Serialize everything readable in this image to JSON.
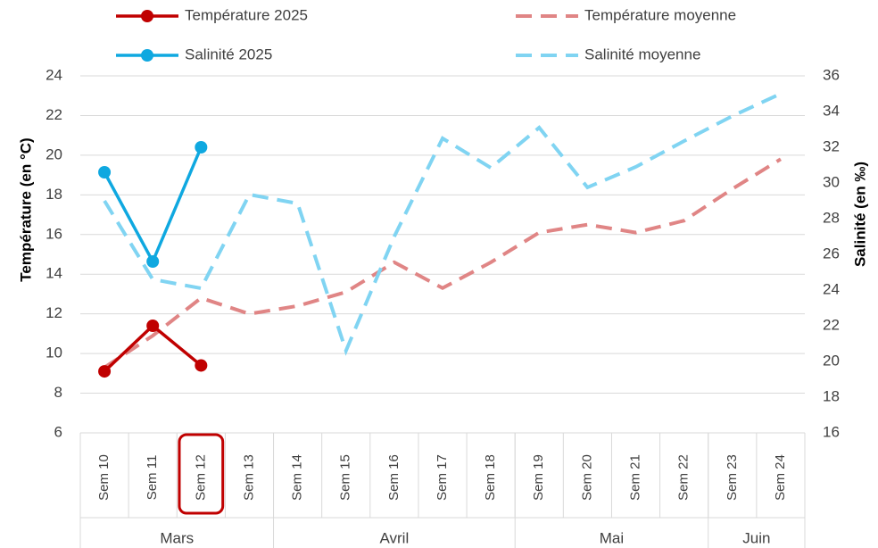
{
  "chart_data": {
    "type": "line",
    "categories": [
      "Sem 10",
      "Sem 11",
      "Sem 12",
      "Sem 13",
      "Sem 14",
      "Sem 15",
      "Sem 16",
      "Sem 17",
      "Sem 18",
      "Sem 19",
      "Sem 20",
      "Sem 21",
      "Sem 22",
      "Sem 23",
      "Sem 24"
    ],
    "groups": [
      {
        "label": "Mars",
        "span": 4
      },
      {
        "label": "Avril",
        "span": 5
      },
      {
        "label": "Mai",
        "span": 4
      },
      {
        "label": "Juin",
        "span": 2
      }
    ],
    "ylabel": "Température (en °C)",
    "y2label": "Salinité (en ‰)",
    "ylim": [
      6,
      24
    ],
    "yticks": [
      6,
      8,
      10,
      12,
      14,
      16,
      18,
      20,
      22,
      24
    ],
    "y2lim": [
      16,
      36
    ],
    "y2ticks": [
      16,
      18,
      20,
      22,
      24,
      26,
      28,
      30,
      32,
      34,
      36
    ],
    "grid": true,
    "highlight": {
      "category": 2,
      "color": "#c00000"
    },
    "series": [
      {
        "name": "Température 2025",
        "color": "#c00000",
        "dashed": false,
        "markers": true,
        "values": [
          9.1,
          11.4,
          9.4,
          null,
          null,
          null,
          null,
          null,
          null,
          null,
          null,
          null,
          null,
          null,
          null
        ]
      },
      {
        "name": "Salinité 2025",
        "color": "#0fa8e0",
        "dashed": false,
        "markers": true,
        "axis": "y2",
        "values": [
          30.6,
          25.6,
          32.0,
          null,
          null,
          null,
          null,
          null,
          null,
          null,
          null,
          null,
          null,
          null,
          null
        ]
      },
      {
        "name": "Température moyenne",
        "color": "#e08585",
        "dashed": true,
        "markers": false,
        "values": [
          9.3,
          10.9,
          12.8,
          12.0,
          12.4,
          13.1,
          14.6,
          13.3,
          14.6,
          16.1,
          16.5,
          16.1,
          16.7,
          18.3,
          19.8
        ]
      },
      {
        "name": "Salinité moyenne",
        "color": "#80d4f2",
        "dashed": true,
        "markers": false,
        "axis": "y2",
        "values": [
          29.0,
          24.6,
          24.1,
          29.35,
          28.85,
          20.6,
          27.0,
          32.5,
          30.85,
          33.1,
          29.75,
          30.9,
          32.35,
          33.75,
          35.0
        ]
      }
    ]
  }
}
